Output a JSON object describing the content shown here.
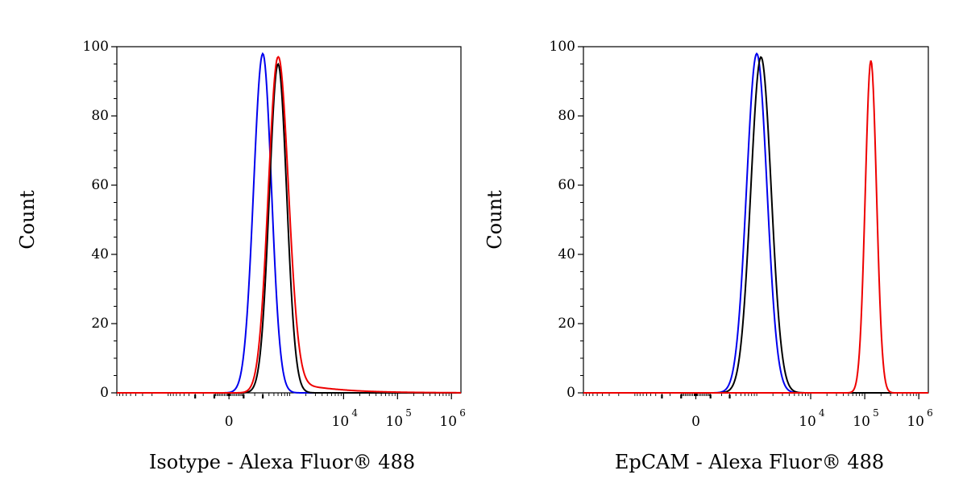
{
  "chart_data": [
    {
      "type": "line",
      "xlabel": "Isotype - Alexa Fluor® 488",
      "ylabel": "Count",
      "ylim": [
        0,
        100
      ],
      "yticks": [
        "0",
        "20",
        "40",
        "60",
        "80",
        "100"
      ],
      "x_scale": "biexponential",
      "xticks": [
        {
          "base": "0",
          "exp": ""
        },
        {
          "base": "10",
          "exp": "4"
        },
        {
          "base": "10",
          "exp": "5"
        },
        {
          "base": "10",
          "exp": "6"
        }
      ],
      "grid": false,
      "series": [
        {
          "color": "#0000ee",
          "peak_x": 300,
          "peak_y": 98,
          "width_left": 0.9,
          "width_right": 0.85
        },
        {
          "color": "#000000",
          "peak_x": 600,
          "peak_y": 95,
          "width_left": 0.85,
          "width_right": 0.85
        },
        {
          "color": "#ee0000",
          "peak_x": 600,
          "peak_y": 97,
          "width_left": 0.95,
          "width_right": 1.0,
          "tail": true
        }
      ]
    },
    {
      "type": "line",
      "xlabel": "EpCAM - Alexa Fluor® 488",
      "ylabel": "Count",
      "ylim": [
        0,
        100
      ],
      "yticks": [
        "0",
        "20",
        "40",
        "60",
        "80",
        "100"
      ],
      "x_scale": "biexponential",
      "xticks": [
        {
          "base": "0",
          "exp": ""
        },
        {
          "base": "10",
          "exp": "4"
        },
        {
          "base": "10",
          "exp": "5"
        },
        {
          "base": "10",
          "exp": "6"
        }
      ],
      "grid": false,
      "series": [
        {
          "color": "#0000ee",
          "peak_x": 1000,
          "peak_y": 98,
          "width_left": 1.0,
          "width_right": 1.0
        },
        {
          "color": "#000000",
          "peak_x": 1200,
          "peak_y": 97,
          "width_left": 1.0,
          "width_right": 1.0
        },
        {
          "color": "#ee0000",
          "peak_x": 130000,
          "peak_y": 96,
          "width_left": 0.55,
          "width_right": 0.55
        }
      ]
    }
  ]
}
